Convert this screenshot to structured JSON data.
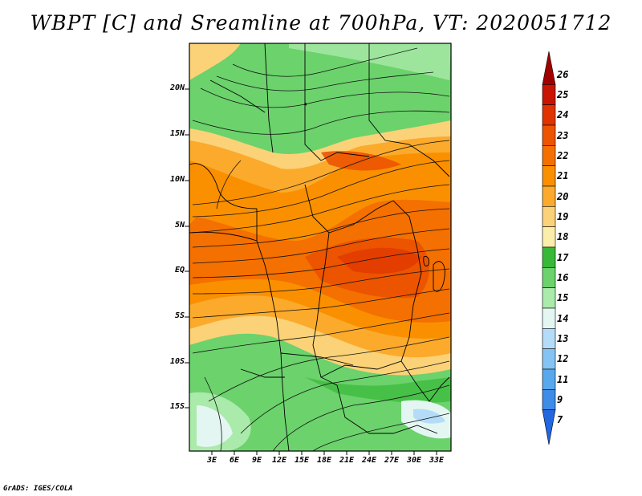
{
  "title": "WBPT [C] and Sreamline at 700hPa, VT: 2020051712",
  "credit": "GrADS: IGES/COLA",
  "map": {
    "lat_labels": [
      "20N",
      "15N",
      "10N",
      "5N",
      "EQ",
      "5S",
      "10S",
      "15S"
    ],
    "lon_labels": [
      "3E",
      "6E",
      "9E",
      "12E",
      "15E",
      "18E",
      "21E",
      "24E",
      "27E",
      "30E",
      "33E"
    ],
    "lat_range_deg": [
      -19.8,
      24.8
    ],
    "lon_range_deg": [
      0,
      35
    ]
  },
  "colorbar": {
    "levels": [
      "26",
      "25",
      "24",
      "23",
      "22",
      "21",
      "20",
      "19",
      "18",
      "17",
      "16",
      "15",
      "14",
      "13",
      "12",
      "11",
      "9",
      "7"
    ],
    "colors": [
      "#a00000",
      "#c81400",
      "#e03400",
      "#ec5400",
      "#f47000",
      "#fa9000",
      "#fbaa2c",
      "#fcd278",
      "#fbeeaa",
      "#38b838",
      "#6cd26c",
      "#aaeaaa",
      "#e4f6f2",
      "#b4dcf8",
      "#84c4f4",
      "#58a8ee",
      "#3c8ce8",
      "#2266e0"
    ]
  }
}
